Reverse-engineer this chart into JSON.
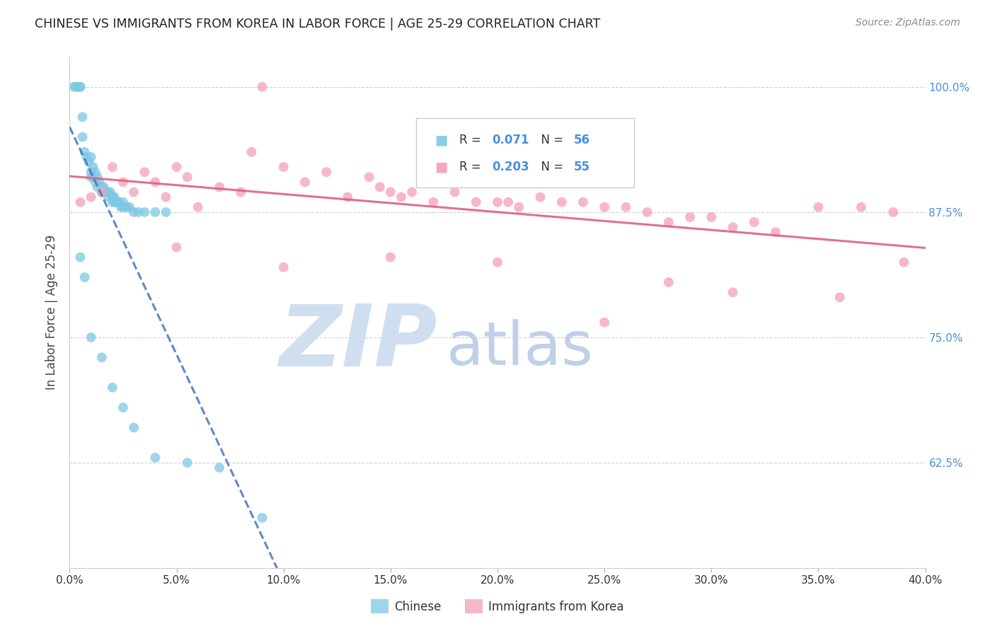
{
  "title": "CHINESE VS IMMIGRANTS FROM KOREA IN LABOR FORCE | AGE 25-29 CORRELATION CHART",
  "source": "Source: ZipAtlas.com",
  "ylabel": "In Labor Force | Age 25-29",
  "x_tick_labels": [
    "0.0%",
    "5.0%",
    "10.0%",
    "15.0%",
    "20.0%",
    "25.0%",
    "30.0%",
    "35.0%",
    "40.0%"
  ],
  "x_tick_values": [
    0.0,
    5.0,
    10.0,
    15.0,
    20.0,
    25.0,
    30.0,
    35.0,
    40.0
  ],
  "y_tick_labels": [
    "100.0%",
    "87.5%",
    "75.0%",
    "62.5%"
  ],
  "y_tick_values": [
    100.0,
    87.5,
    75.0,
    62.5
  ],
  "xlim": [
    0.0,
    40.0
  ],
  "ylim": [
    52.0,
    103.0
  ],
  "legend_label1": "Chinese",
  "legend_label2": "Immigrants from Korea",
  "chinese_color": "#7ec8e3",
  "korea_color": "#f4a0b5",
  "trend_chinese_color": "#4472c4",
  "trend_korea_color": "#e06080",
  "background_color": "#ffffff",
  "grid_color": "#d0d0d0",
  "title_color": "#222222",
  "axis_label_color": "#4a90d9",
  "r_chinese": "0.071",
  "n_chinese": "56",
  "r_korea": "0.203",
  "n_korea": "55",
  "chinese_x": [
    0.2,
    0.3,
    0.4,
    0.5,
    0.5,
    0.6,
    0.6,
    0.7,
    0.8,
    0.9,
    1.0,
    1.0,
    1.0,
    1.1,
    1.1,
    1.2,
    1.2,
    1.3,
    1.3,
    1.4,
    1.5,
    1.5,
    1.6,
    1.7,
    1.8,
    1.8,
    1.9,
    2.0,
    2.0,
    2.0,
    2.1,
    2.1,
    2.2,
    2.3,
    2.4,
    2.5,
    2.5,
    2.6,
    2.7,
    2.8,
    3.0,
    3.2,
    3.5,
    4.0,
    4.5,
    0.5,
    0.7,
    1.0,
    1.5,
    2.0,
    2.5,
    3.0,
    4.0,
    5.5,
    7.0,
    9.0
  ],
  "chinese_y": [
    100.0,
    100.0,
    100.0,
    100.0,
    100.0,
    97.0,
    95.0,
    93.5,
    93.0,
    92.5,
    93.0,
    91.5,
    91.0,
    92.0,
    91.0,
    91.5,
    90.5,
    91.0,
    90.0,
    90.5,
    90.0,
    89.5,
    90.0,
    89.5,
    89.5,
    89.0,
    89.5,
    89.0,
    89.0,
    88.5,
    89.0,
    88.5,
    88.5,
    88.5,
    88.0,
    88.5,
    88.0,
    88.0,
    88.0,
    88.0,
    87.5,
    87.5,
    87.5,
    87.5,
    87.5,
    83.0,
    81.0,
    75.0,
    73.0,
    70.0,
    68.0,
    66.0,
    63.0,
    62.5,
    62.0,
    57.0
  ],
  "korea_x": [
    0.5,
    1.0,
    1.5,
    2.0,
    2.5,
    3.0,
    3.5,
    4.0,
    4.5,
    5.0,
    5.5,
    6.0,
    7.0,
    8.0,
    8.5,
    9.0,
    10.0,
    11.0,
    12.0,
    13.0,
    14.0,
    14.5,
    15.0,
    15.5,
    16.0,
    17.0,
    18.0,
    19.0,
    20.0,
    20.5,
    21.0,
    22.0,
    23.0,
    24.0,
    25.0,
    26.0,
    27.0,
    28.0,
    29.0,
    30.0,
    31.0,
    32.0,
    33.0,
    35.0,
    37.0,
    38.5,
    5.0,
    10.0,
    15.0,
    20.0,
    25.0,
    28.0,
    31.0,
    36.0,
    39.0
  ],
  "korea_y": [
    88.5,
    89.0,
    89.5,
    92.0,
    90.5,
    89.5,
    91.5,
    90.5,
    89.0,
    92.0,
    91.0,
    88.0,
    90.0,
    89.5,
    93.5,
    100.0,
    92.0,
    90.5,
    91.5,
    89.0,
    91.0,
    90.0,
    89.5,
    89.0,
    89.5,
    88.5,
    89.5,
    88.5,
    88.5,
    88.5,
    88.0,
    89.0,
    88.5,
    88.5,
    88.0,
    88.0,
    87.5,
    86.5,
    87.0,
    87.0,
    86.0,
    86.5,
    85.5,
    88.0,
    88.0,
    87.5,
    84.0,
    82.0,
    83.0,
    82.5,
    76.5,
    80.5,
    79.5,
    79.0,
    82.5
  ]
}
